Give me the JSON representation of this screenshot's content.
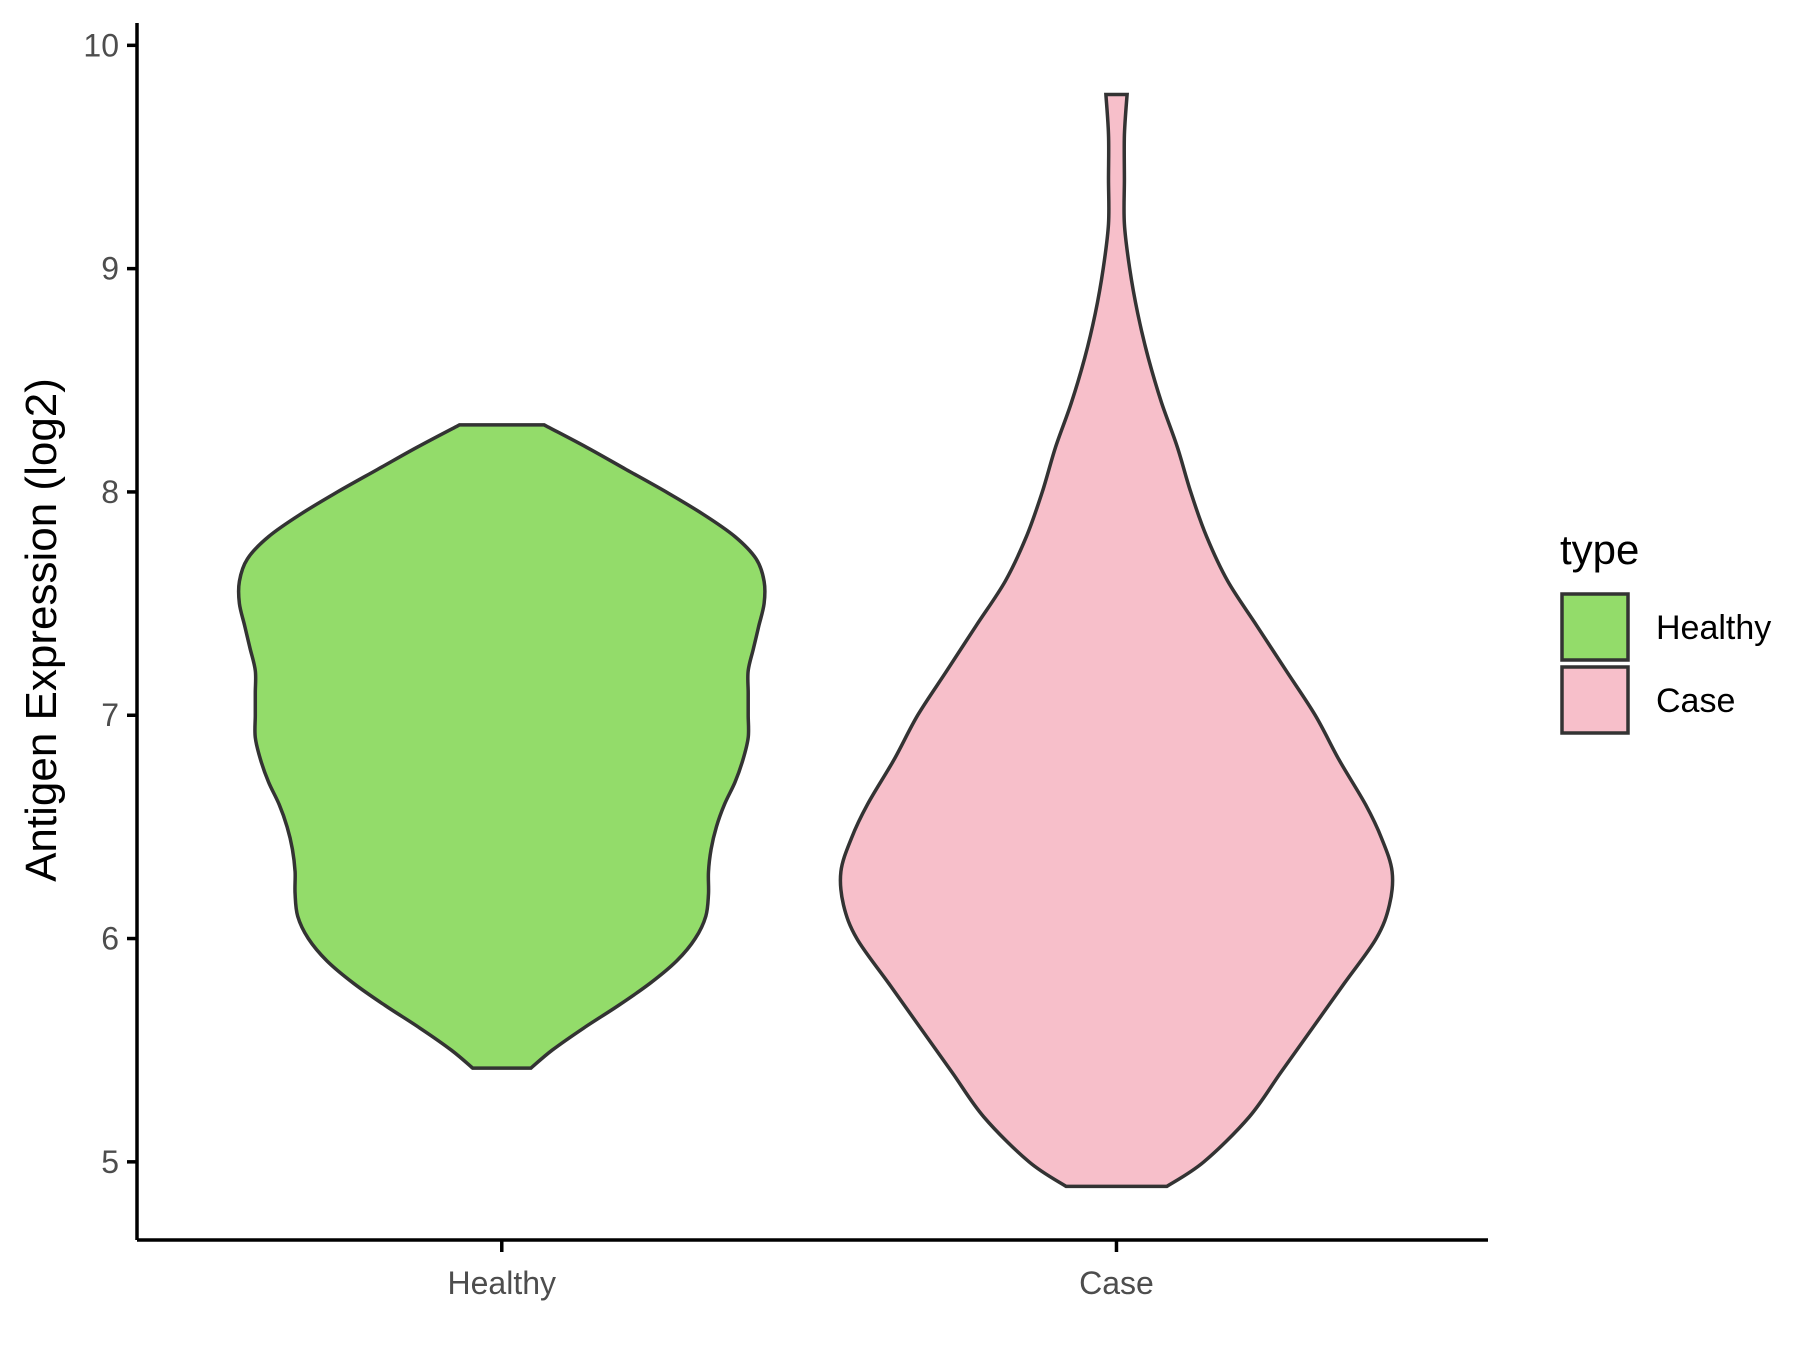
{
  "chart_data": {
    "type": "violin",
    "ylabel": "Antigen Expression (log2)",
    "xlabel": "",
    "ylim": [
      4.65,
      10.1
    ],
    "yticks": [
      5,
      6,
      7,
      8,
      9,
      10
    ],
    "categories": [
      "Healthy",
      "Case"
    ],
    "legend": {
      "title": "type",
      "position": "right",
      "entries": [
        "Healthy",
        "Case"
      ]
    },
    "grid": false,
    "series": [
      {
        "name": "Healthy",
        "color": "#93DC6A",
        "min": 5.42,
        "max": 8.3,
        "profile": [
          [
            5.42,
            0.11
          ],
          [
            5.5,
            0.19
          ],
          [
            5.6,
            0.31
          ],
          [
            5.7,
            0.44
          ],
          [
            5.8,
            0.56
          ],
          [
            5.9,
            0.66
          ],
          [
            6.0,
            0.73
          ],
          [
            6.1,
            0.77
          ],
          [
            6.2,
            0.78
          ],
          [
            6.3,
            0.78
          ],
          [
            6.4,
            0.79
          ],
          [
            6.5,
            0.81
          ],
          [
            6.6,
            0.84
          ],
          [
            6.7,
            0.88
          ],
          [
            6.8,
            0.91
          ],
          [
            6.9,
            0.93
          ],
          [
            7.0,
            0.93
          ],
          [
            7.1,
            0.93
          ],
          [
            7.2,
            0.93
          ],
          [
            7.3,
            0.95
          ],
          [
            7.4,
            0.97
          ],
          [
            7.5,
            0.99
          ],
          [
            7.6,
            0.99
          ],
          [
            7.7,
            0.96
          ],
          [
            7.8,
            0.88
          ],
          [
            7.9,
            0.76
          ],
          [
            8.0,
            0.62
          ],
          [
            8.1,
            0.47
          ],
          [
            8.2,
            0.32
          ],
          [
            8.3,
            0.16
          ]
        ]
      },
      {
        "name": "Case",
        "color": "#F7BFCA",
        "min": 4.89,
        "max": 9.78,
        "profile": [
          [
            4.89,
            0.19
          ],
          [
            5.0,
            0.33
          ],
          [
            5.2,
            0.5
          ],
          [
            5.4,
            0.62
          ],
          [
            5.6,
            0.74
          ],
          [
            5.8,
            0.86
          ],
          [
            6.0,
            0.98
          ],
          [
            6.15,
            1.03
          ],
          [
            6.3,
            1.04
          ],
          [
            6.45,
            1.0
          ],
          [
            6.6,
            0.94
          ],
          [
            6.8,
            0.84
          ],
          [
            7.0,
            0.75
          ],
          [
            7.2,
            0.64
          ],
          [
            7.4,
            0.53
          ],
          [
            7.6,
            0.42
          ],
          [
            7.8,
            0.34
          ],
          [
            8.0,
            0.28
          ],
          [
            8.2,
            0.23
          ],
          [
            8.4,
            0.17
          ],
          [
            8.6,
            0.12
          ],
          [
            8.8,
            0.08
          ],
          [
            9.0,
            0.05
          ],
          [
            9.2,
            0.03
          ],
          [
            9.4,
            0.03
          ],
          [
            9.6,
            0.03
          ],
          [
            9.78,
            0.04
          ]
        ]
      }
    ]
  }
}
